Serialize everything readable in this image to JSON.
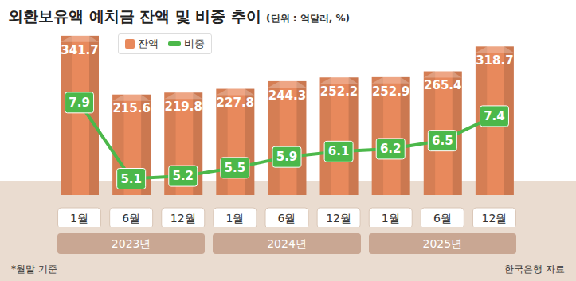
{
  "chart_data": {
    "type": "bar",
    "title": "외환보유액 예치금 잔액 및 비중 추이",
    "subtitle": "(단위 : 억달러, %)",
    "categories": [
      "1월",
      "6월",
      "12월",
      "1월",
      "6월",
      "12월",
      "1월",
      "6월",
      "12월"
    ],
    "groups": [
      {
        "label": "2023년",
        "span": 3
      },
      {
        "label": "2024년",
        "span": 3
      },
      {
        "label": "2025년",
        "span": 3
      }
    ],
    "series": [
      {
        "name": "잔액",
        "type": "bar",
        "color": "#e8895c",
        "values": [
          341.7,
          215.6,
          219.8,
          227.8,
          244.3,
          252.2,
          252.9,
          265.4,
          318.7
        ]
      },
      {
        "name": "비중",
        "type": "line",
        "axis": "y2",
        "color": "#4cb84a",
        "values": [
          7.9,
          5.1,
          5.2,
          5.5,
          5.9,
          6.1,
          6.2,
          6.5,
          7.4
        ]
      }
    ],
    "ylim": [
      0,
      350
    ],
    "y2lim": [
      4.5,
      10.5
    ],
    "tick_labels": false,
    "grid": false,
    "legend": "top-left",
    "data_labels": true,
    "notes": [
      "*월말 기준"
    ],
    "source": "한국은행 자료"
  }
}
